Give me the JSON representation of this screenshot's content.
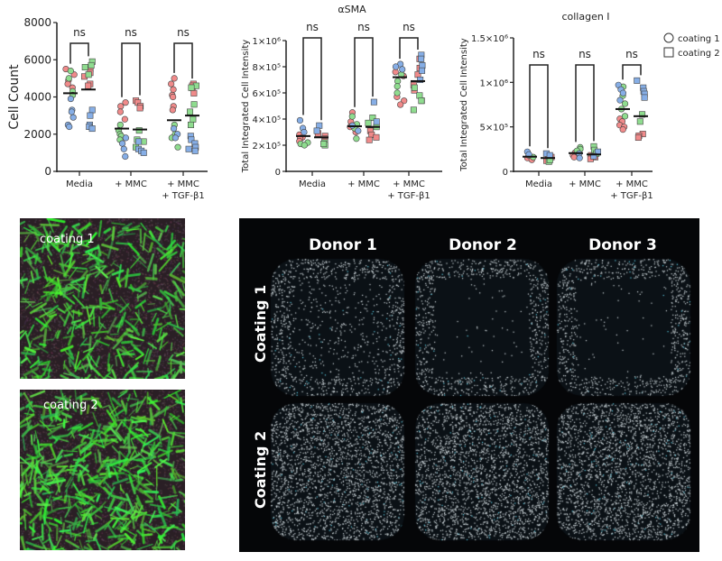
{
  "colors": {
    "donor1": "#f08a8a",
    "donor2": "#8fdc8f",
    "donor3": "#86aee6",
    "outline": "#444444"
  },
  "legend": {
    "items": [
      {
        "label": "coating 1",
        "shape": "circle"
      },
      {
        "label": "coating 2",
        "shape": "square"
      }
    ]
  },
  "chart_data": [
    {
      "type": "scatter",
      "title": "",
      "ylabel": "Cell Count",
      "ylim": [
        0,
        8000
      ],
      "yticks": [
        {
          "v": 0,
          "label": "0"
        },
        {
          "v": 2000,
          "label": "2000"
        },
        {
          "v": 4000,
          "label": "4000"
        },
        {
          "v": 6000,
          "label": "6000"
        },
        {
          "v": 8000,
          "label": "8000"
        }
      ],
      "categories": [
        "Media",
        "+ MMC",
        "+ MMC\n+ TGF-β1"
      ],
      "significance": [
        "ns",
        "ns",
        "ns"
      ],
      "groups": [
        [
          {
            "mean": 4200,
            "red": [
              5500,
              5200,
              4900,
              4700,
              4500
            ],
            "green": [
              5400,
              5000,
              4300,
              4100
            ],
            "blue": [
              3900,
              3300,
              3200,
              2900,
              2500,
              2400
            ]
          },
          {
            "mean": 4400,
            "red": [
              5500,
              5300,
              5100,
              4700,
              4600
            ],
            "green": [
              5900,
              5700,
              5600,
              5200
            ],
            "blue": [
              3300,
              3000,
              2500,
              2400,
              2300
            ]
          }
        ],
        [
          {
            "mean": 2300,
            "red": [
              3700,
              3500,
              3200,
              2800
            ],
            "green": [
              2500,
              2200,
              2000,
              1900,
              1700
            ],
            "blue": [
              1800,
              1500,
              1200,
              800
            ]
          },
          {
            "mean": 2250,
            "red": [
              3800,
              3700,
              3500,
              3400
            ],
            "green": [
              2200,
              1700,
              1600,
              1300
            ],
            "blue": [
              1600,
              1200,
              1100,
              1000
            ]
          }
        ],
        [
          {
            "mean": 2750,
            "red": [
              5000,
              4700,
              4400,
              4100,
              4000,
              3500,
              3300
            ],
            "green": [
              2500,
              2000,
              1800,
              1300
            ],
            "blue": [
              2300,
              2000,
              1800
            ]
          },
          {
            "mean": 3000,
            "red": [
              4700,
              4600,
              4500,
              4200
            ],
            "green": [
              4600,
              4500,
              3600,
              3200,
              2800,
              2500
            ],
            "blue": [
              1900,
              1700,
              1500,
              1300,
              1200,
              1100
            ]
          }
        ]
      ]
    },
    {
      "type": "scatter",
      "title": "αSMA",
      "ylabel": "Total Integrated Cell Intensity",
      "ylim": [
        0,
        1000000
      ],
      "yticks": [
        {
          "v": 0,
          "label": "0"
        },
        {
          "v": 200000,
          "label": "2×10⁵"
        },
        {
          "v": 400000,
          "label": "4×10⁵"
        },
        {
          "v": 600000,
          "label": "6×10⁵"
        },
        {
          "v": 800000,
          "label": "8×10⁵"
        },
        {
          "v": 1000000,
          "label": "1×10⁶"
        }
      ],
      "categories": [
        "Media",
        "+ MMC",
        "+ MMC\n+ TGF-β1"
      ],
      "significance": [
        "ns",
        "ns",
        "ns"
      ],
      "groups": [
        [
          {
            "mean": 270000,
            "blue": [
              390000,
              330000,
              300000
            ],
            "red": [
              280000,
              260000,
              250000,
              230000
            ],
            "green": [
              220000,
              210000,
              200000
            ]
          },
          {
            "mean": 260000,
            "blue": [
              350000,
              310000
            ],
            "red": [
              290000,
              270000,
              250000,
              230000
            ],
            "green": [
              220000,
              200000,
              210000
            ]
          }
        ],
        [
          {
            "mean": 345000,
            "red": [
              450000,
              380000,
              340000,
              300000
            ],
            "green": [
              420000,
              360000,
              330000,
              250000
            ],
            "blue": [
              350000,
              310000
            ]
          },
          {
            "mean": 340000,
            "blue": [
              530000,
              380000
            ],
            "green": [
              410000,
              370000,
              340000
            ],
            "red": [
              310000,
              280000,
              260000,
              240000
            ]
          }
        ],
        [
          {
            "mean": 720000,
            "blue": [
              820000,
              800000,
              780000
            ],
            "red": [
              760000,
              730000,
              570000,
              540000,
              510000
            ],
            "green": [
              740000,
              690000,
              650000,
              600000
            ]
          },
          {
            "mean": 690000,
            "blue": [
              890000,
              860000,
              810000,
              770000,
              700000
            ],
            "red": [
              860000,
              790000,
              740000,
              660000,
              620000,
              540000
            ],
            "green": [
              640000,
              580000,
              540000,
              470000
            ]
          }
        ]
      ]
    },
    {
      "type": "scatter",
      "title": "collagen I",
      "ylabel": "Total Integrated Cell Intensity",
      "ylim": [
        0,
        1500000
      ],
      "yticks": [
        {
          "v": 0,
          "label": "0"
        },
        {
          "v": 500000,
          "label": "5×10⁵"
        },
        {
          "v": 1000000,
          "label": "1×10⁶"
        },
        {
          "v": 1500000,
          "label": "1.5×10⁶"
        }
      ],
      "categories": [
        "Media",
        "+ MMC",
        "+ MMC\n+ TGF-β1"
      ],
      "significance": [
        "ns",
        "ns",
        "ns"
      ],
      "groups": [
        [
          {
            "mean": 165000,
            "blue": [
              220000,
              190000
            ],
            "red": [
              170000,
              150000,
              130000
            ],
            "green": [
              160000,
              180000
            ]
          },
          {
            "mean": 150000,
            "blue": [
              200000,
              180000
            ],
            "red": [
              160000,
              140000,
              120000
            ],
            "green": [
              110000,
              130000
            ]
          }
        ],
        [
          {
            "mean": 205000,
            "green": [
              270000,
              250000,
              230000
            ],
            "red": [
              210000,
              180000,
              160000
            ],
            "blue": [
              200000,
              150000
            ]
          },
          {
            "mean": 190000,
            "green": [
              280000,
              240000,
              200000
            ],
            "red": [
              180000,
              160000,
              140000
            ],
            "blue": [
              220000,
              170000
            ]
          }
        ],
        [
          {
            "mean": 700000,
            "blue": [
              970000,
              920000,
              880000,
              800000
            ],
            "green": [
              950000,
              850000,
              760000,
              700000,
              620000
            ],
            "red": [
              590000,
              560000,
              520000,
              500000,
              470000
            ]
          },
          {
            "mean": 620000,
            "blue": [
              1020000,
              940000,
              900000,
              870000,
              830000
            ],
            "green": [
              640000,
              560000
            ],
            "red": [
              420000,
              400000,
              380000
            ]
          }
        ]
      ]
    }
  ],
  "micrographs": {
    "coating1": "coating 1",
    "coating2": "coating 2"
  },
  "panel": {
    "columns": [
      "Donor 1",
      "Donor 2",
      "Donor 3"
    ],
    "rows": [
      "Coating 1",
      "Coating 2"
    ]
  }
}
